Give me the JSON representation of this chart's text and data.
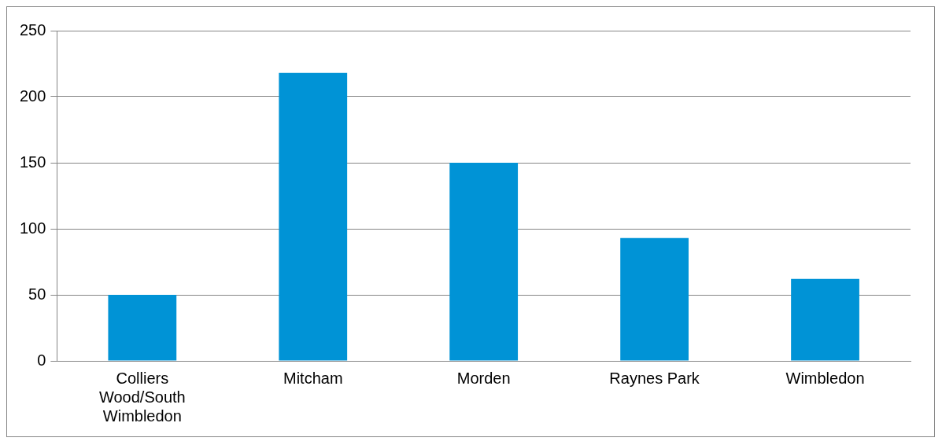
{
  "chart_data": {
    "type": "bar",
    "categories": [
      "Colliers Wood/South Wimbledon",
      "Mitcham",
      "Morden",
      "Raynes Park",
      "Wimbledon"
    ],
    "values": [
      50,
      218,
      150,
      93,
      62
    ],
    "color": "#0093d6",
    "ylim": [
      0,
      250
    ],
    "yticks": [
      0,
      50,
      100,
      150,
      200,
      250
    ],
    "grid": "y"
  }
}
